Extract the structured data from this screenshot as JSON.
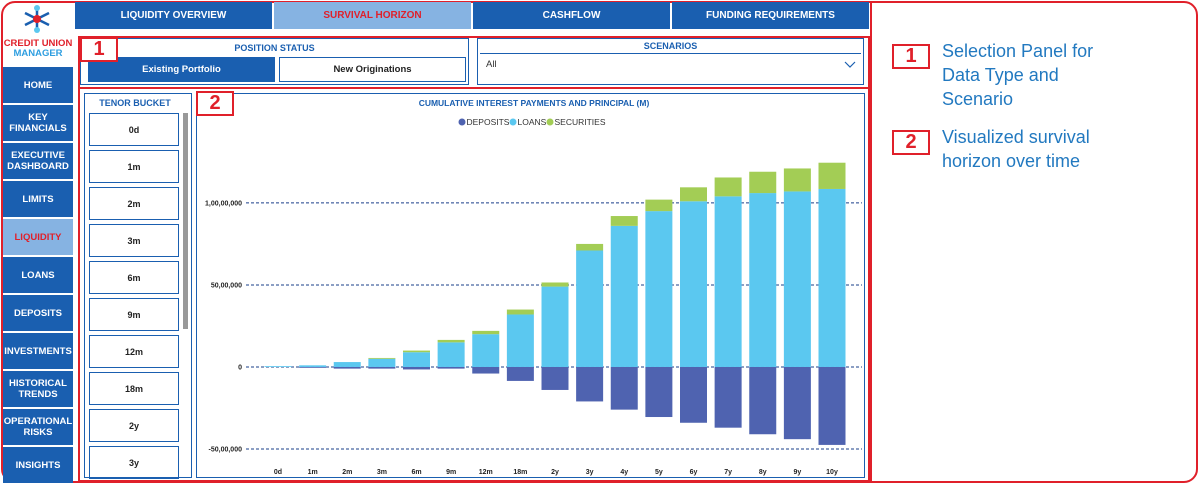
{
  "logo": {
    "line1": "CREDIT UNION",
    "line2": "MANAGER"
  },
  "tabs": [
    {
      "label": "LIQUIDITY OVERVIEW",
      "active": false
    },
    {
      "label": "SURVIVAL HORIZON",
      "active": true
    },
    {
      "label": "CASHFLOW",
      "active": false
    },
    {
      "label": "FUNDING REQUIREMENTS",
      "active": false
    }
  ],
  "sidebar": [
    {
      "label": "HOME",
      "active": false
    },
    {
      "label": "KEY FINANCIALS",
      "active": false
    },
    {
      "label": "EXECUTIVE DASHBOARD",
      "active": false
    },
    {
      "label": "LIMITS",
      "active": false
    },
    {
      "label": "LIQUIDITY",
      "active": true
    },
    {
      "label": "LOANS",
      "active": false
    },
    {
      "label": "DEPOSITS",
      "active": false
    },
    {
      "label": "INVESTMENTS",
      "active": false
    },
    {
      "label": "HISTORICAL TRENDS",
      "active": false
    },
    {
      "label": "OPERATIONAL RISKS",
      "active": false
    },
    {
      "label": "INSIGHTS",
      "active": false
    }
  ],
  "position_status": {
    "title": "POSITION STATUS",
    "options": [
      {
        "label": "Existing Portfolio",
        "active": true
      },
      {
        "label": "New Originations",
        "active": false
      }
    ]
  },
  "scenarios": {
    "title": "SCENARIOS",
    "value": "All"
  },
  "tenor_bucket": {
    "title": "TENOR BUCKET",
    "items": [
      "0d",
      "1m",
      "2m",
      "3m",
      "6m",
      "9m",
      "12m",
      "18m",
      "2y",
      "3y"
    ]
  },
  "callouts": [
    {
      "number": "1",
      "lines": [
        "Selection Panel for",
        "Data Type and",
        "Scenario"
      ]
    },
    {
      "number": "2",
      "lines": [
        "Visualized survival",
        "horizon over time"
      ]
    }
  ],
  "chart_data": {
    "type": "stacked_bar",
    "title": "CUMULATIVE INTEREST PAYMENTS AND PRINCIPAL (M)",
    "categories": [
      "0d",
      "1m",
      "2m",
      "3m",
      "6m",
      "9m",
      "12m",
      "18m",
      "2y",
      "3y",
      "4y",
      "5y",
      "6y",
      "7y",
      "8y",
      "9y",
      "10y"
    ],
    "series": [
      {
        "name": "DEPOSITS",
        "color": "#4f63b0",
        "values": [
          0,
          -50000,
          -100000,
          -100000,
          -150000,
          -100000,
          -400000,
          -850000,
          -1400000,
          -2100000,
          -2600000,
          -3050000,
          -3400000,
          -3700000,
          -4100000,
          -4400000,
          -4750000
        ]
      },
      {
        "name": "LOANS",
        "color": "#5bc8f0",
        "values": [
          50000,
          100000,
          300000,
          500000,
          900000,
          1500000,
          2000000,
          3200000,
          4900000,
          7100000,
          8600000,
          9500000,
          10100000,
          10400000,
          10600000,
          10700000,
          10850000
        ]
      },
      {
        "name": "SECURITIES",
        "color": "#a3cd55",
        "values": [
          0,
          0,
          0,
          50000,
          100000,
          150000,
          200000,
          300000,
          250000,
          400000,
          600000,
          700000,
          850000,
          1150000,
          1300000,
          1400000,
          1600000
        ]
      }
    ],
    "ylim": [
      -5700000,
      14200000
    ],
    "yticks": [
      {
        "value": -5000000,
        "label": "-50,00,000"
      },
      0,
      {
        "value": 5000000,
        "label": "50,00,000"
      },
      {
        "value": 10000000,
        "label": "1,00,00,000"
      }
    ],
    "grid": true
  }
}
